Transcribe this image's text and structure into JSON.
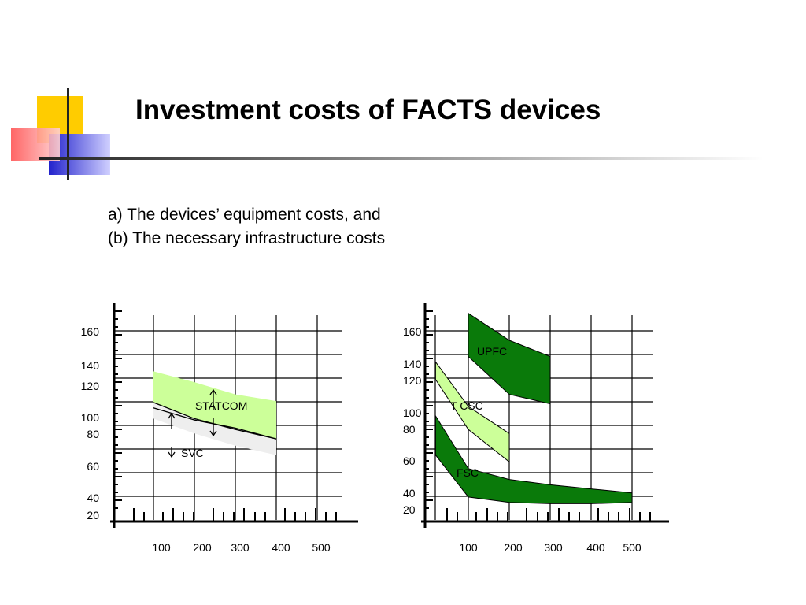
{
  "slide": {
    "title": "Investment costs of FACTS devices",
    "line1": "a) The devices’ equipment costs, and",
    "line2": "(b) The necessary infrastructure costs"
  },
  "colors": {
    "statcom_fill": "#ccff99",
    "svc_fill": "#eeeeee",
    "upfc_fill": "#0a7a0a",
    "tcsc_fill": "#ccff99",
    "fsc_fill": "#0a7a0a",
    "grid": "#000000"
  },
  "chart_data": [
    {
      "type": "area",
      "xticks": [
        "100",
        "200",
        "300",
        "400",
        "500"
      ],
      "yticks": [
        "160",
        "140",
        "120",
        "100",
        "80",
        "60",
        "40",
        "20"
      ],
      "series": [
        {
          "name": "STATCOM",
          "x": [
            100,
            200,
            300,
            400
          ],
          "upper": [
            130,
            122,
            113,
            108
          ],
          "lower": [
            103,
            94,
            88,
            80
          ]
        },
        {
          "name": "SVC",
          "x": [
            100,
            200,
            300,
            400
          ],
          "upper": [
            107,
            95,
            87,
            80
          ],
          "lower": [
            95,
            84,
            75,
            68
          ]
        }
      ]
    },
    {
      "type": "area",
      "xticks": [
        "100",
        "200",
        "300",
        "400",
        "500"
      ],
      "yticks": [
        "160",
        "140",
        "120",
        "100",
        "80",
        "60",
        "40",
        "20"
      ],
      "series": [
        {
          "name": "UPFC",
          "x": [
            100,
            200,
            300
          ],
          "upper": [
            173,
            153,
            141
          ],
          "lower": [
            141,
            113,
            106
          ]
        },
        {
          "name": "T CSC",
          "x": [
            20,
            100,
            200
          ],
          "upper": [
            137,
            104,
            84
          ],
          "lower": [
            124,
            87,
            63
          ]
        },
        {
          "name": "FSC",
          "x": [
            20,
            100,
            200,
            300,
            400,
            500
          ],
          "upper": [
            97,
            58,
            50,
            46,
            43,
            40
          ],
          "lower": [
            68,
            37,
            33,
            32,
            32,
            33
          ]
        }
      ]
    }
  ]
}
